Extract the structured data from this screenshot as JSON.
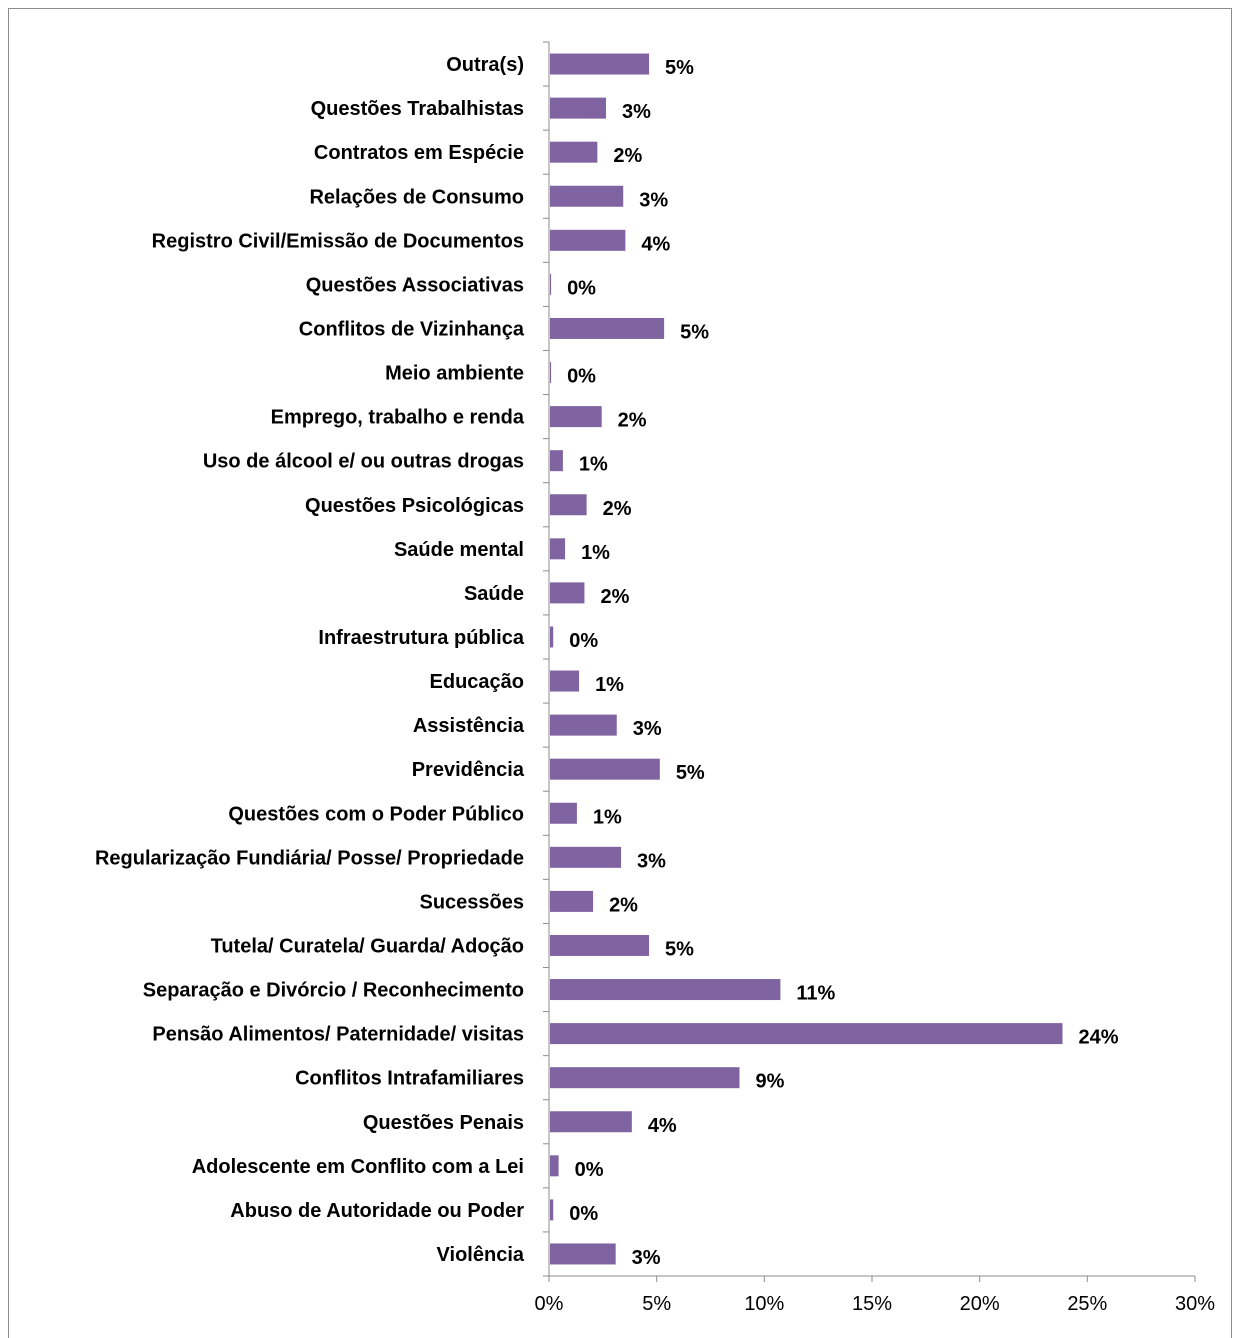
{
  "chart_data": {
    "type": "bar",
    "orientation": "horizontal",
    "title": "",
    "xlabel": "",
    "ylabel": "",
    "xlim": [
      0,
      30
    ],
    "x_ticks": [
      "0%",
      "5%",
      "10%",
      "15%",
      "20%",
      "25%",
      "30%"
    ],
    "grid": false,
    "legend": "none",
    "bar_color": "#8064A2",
    "categories": [
      "Outra(s)",
      "Questões Trabalhistas",
      "Contratos em Espécie",
      "Relações de Consumo",
      "Registro Civil/Emissão de Documentos",
      "Questões Associativas",
      "Conflitos de Vizinhança",
      "Meio ambiente",
      "Emprego, trabalho e renda",
      "Uso de álcool e/ ou outras drogas",
      "Questões Psicológicas",
      "Saúde mental",
      "Saúde",
      "Infraestrutura pública",
      "Educação",
      "Assistência",
      "Previdência",
      "Questões com o Poder Público",
      "Regularização Fundiária/ Posse/ Propriedade",
      "Sucessões",
      "Tutela/ Curatela/ Guarda/ Adoção",
      "Separação e Divórcio / Reconhecimento",
      "Pensão Alimentos/ Paternidade/ visitas",
      "Conflitos Intrafamiliares",
      "Questões Penais",
      "Adolescente em Conflito com a Lei",
      "Abuso de Autoridade ou Poder",
      "Violência"
    ],
    "values": [
      4.6,
      2.6,
      2.2,
      3.4,
      3.5,
      0.05,
      5.3,
      0.05,
      2.4,
      0.6,
      1.7,
      0.7,
      1.6,
      0.15,
      1.35,
      3.1,
      5.1,
      1.25,
      3.3,
      2.0,
      4.6,
      10.7,
      23.8,
      8.8,
      3.8,
      0.4,
      0.15,
      3.05
    ],
    "data_labels": [
      "5%",
      "3%",
      "2%",
      "3%",
      "4%",
      "0%",
      "5%",
      "0%",
      "2%",
      "1%",
      "2%",
      "1%",
      "2%",
      "0%",
      "1%",
      "3%",
      "5%",
      "1%",
      "3%",
      "2%",
      "5%",
      "11%",
      "24%",
      "9%",
      "4%",
      "0%",
      "0%",
      "3%"
    ]
  }
}
